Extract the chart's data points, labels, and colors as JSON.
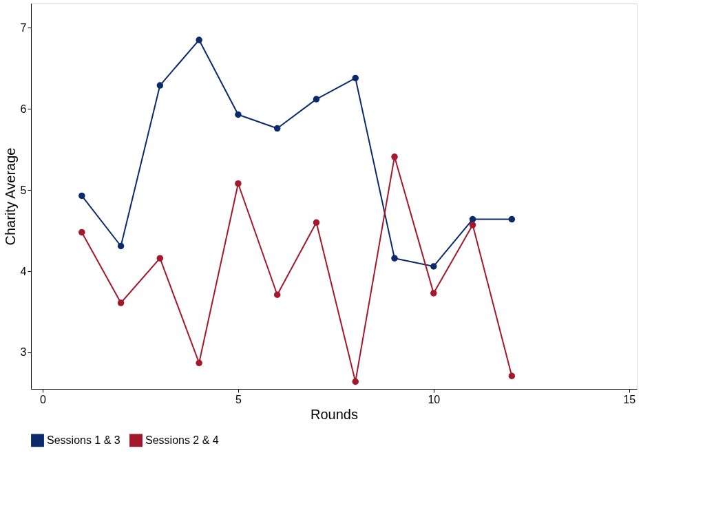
{
  "chart_data": {
    "type": "line",
    "xlabel": "Rounds",
    "ylabel": "Charity Average",
    "x": [
      1,
      2,
      3,
      4,
      5,
      6,
      7,
      8,
      9,
      10,
      11,
      12
    ],
    "series": [
      {
        "name": "Sessions 1 & 3",
        "color": "#0b2a6b",
        "values": [
          4.93,
          4.31,
          6.29,
          6.85,
          5.93,
          5.76,
          6.12,
          6.38,
          4.16,
          4.06,
          4.64,
          4.64
        ]
      },
      {
        "name": "Sessions 2 & 4",
        "color": "#a3182b",
        "values": [
          4.48,
          3.61,
          4.16,
          2.87,
          5.08,
          3.71,
          4.6,
          2.64,
          5.41,
          3.73,
          4.57,
          2.71
        ]
      }
    ],
    "xlim": [
      -0.3,
      15.2
    ],
    "xticks": [
      0,
      5,
      10,
      15
    ],
    "ylim": [
      2.55,
      7.3
    ],
    "yticks": [
      3,
      4,
      5,
      6,
      7
    ],
    "grid": false,
    "legend": "bottom",
    "marker": "circle",
    "line_style": "solid"
  }
}
